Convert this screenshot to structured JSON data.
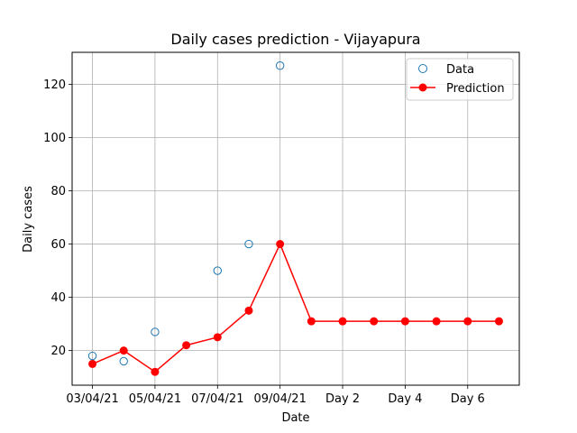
{
  "chart_data": {
    "type": "line",
    "title": "Daily cases prediction - Vijayapura",
    "xlabel": "Date",
    "ylabel": "Daily cases",
    "x_tick_labels": [
      "03/04/21",
      "05/04/21",
      "07/04/21",
      "09/04/21",
      "Day 2",
      "Day 4",
      "Day 6"
    ],
    "y_ticks": [
      20,
      40,
      60,
      80,
      100,
      120
    ],
    "ylim": [
      7,
      132
    ],
    "grid": true,
    "legend_position": "top-right",
    "series": [
      {
        "name": "Data",
        "style": "open-circle-markers",
        "color": "#1f77b4",
        "points": [
          {
            "x": "03/04/21",
            "y": 18
          },
          {
            "x": "04/04/21",
            "y": 16
          },
          {
            "x": "05/04/21",
            "y": 27
          },
          {
            "x": "07/04/21",
            "y": 50
          },
          {
            "x": "08/04/21",
            "y": 60
          },
          {
            "x": "09/04/21",
            "y": 127
          }
        ]
      },
      {
        "name": "Prediction",
        "style": "line-with-filled-markers",
        "color": "#ff0000",
        "points": [
          {
            "x": "03/04/21",
            "y": 15
          },
          {
            "x": "04/04/21",
            "y": 20
          },
          {
            "x": "05/04/21",
            "y": 12
          },
          {
            "x": "06/04/21",
            "y": 22
          },
          {
            "x": "07/04/21",
            "y": 25
          },
          {
            "x": "08/04/21",
            "y": 35
          },
          {
            "x": "09/04/21",
            "y": 60
          },
          {
            "x": "Day 1",
            "y": 31
          },
          {
            "x": "Day 2",
            "y": 31
          },
          {
            "x": "Day 3",
            "y": 31
          },
          {
            "x": "Day 4",
            "y": 31
          },
          {
            "x": "Day 5",
            "y": 31
          },
          {
            "x": "Day 6",
            "y": 31
          },
          {
            "x": "Day 7",
            "y": 31
          }
        ]
      }
    ]
  }
}
